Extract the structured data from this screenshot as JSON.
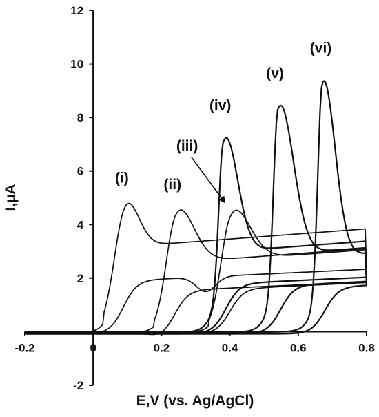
{
  "chart_data": {
    "type": "line",
    "xlabel": "E,V (vs. Ag/AgCl)",
    "ylabel": "I,µA",
    "xlim": [
      -0.2,
      0.8
    ],
    "ylim": [
      -2,
      12
    ],
    "x_ticks": [
      "-0.2",
      "0",
      "0.2",
      "0.4",
      "0.6",
      "0.8"
    ],
    "y_ticks": [
      "-2",
      "2",
      "4",
      "6",
      "8",
      "10",
      "12"
    ],
    "grid": false,
    "series": [
      {
        "name": "(i)",
        "peak_x": 0.09,
        "peak_y": 4.85,
        "peak_label": "(i)"
      },
      {
        "name": "(ii)",
        "peak_x": 0.24,
        "peak_y": 4.6,
        "peak_label": "(ii)"
      },
      {
        "name": "(iii)",
        "peak_x": 0.4,
        "peak_y": 4.55,
        "peak_label": "(iii)"
      },
      {
        "name": "(iv)",
        "peak_x": 0.38,
        "peak_y": 7.65,
        "peak_label": "(iv)"
      },
      {
        "name": "(v)",
        "peak_x": 0.54,
        "peak_y": 8.85,
        "peak_label": "(v)"
      },
      {
        "name": "(vi)",
        "peak_x": 0.67,
        "peak_y": 9.8,
        "peak_label": "(vi)"
      }
    ]
  }
}
